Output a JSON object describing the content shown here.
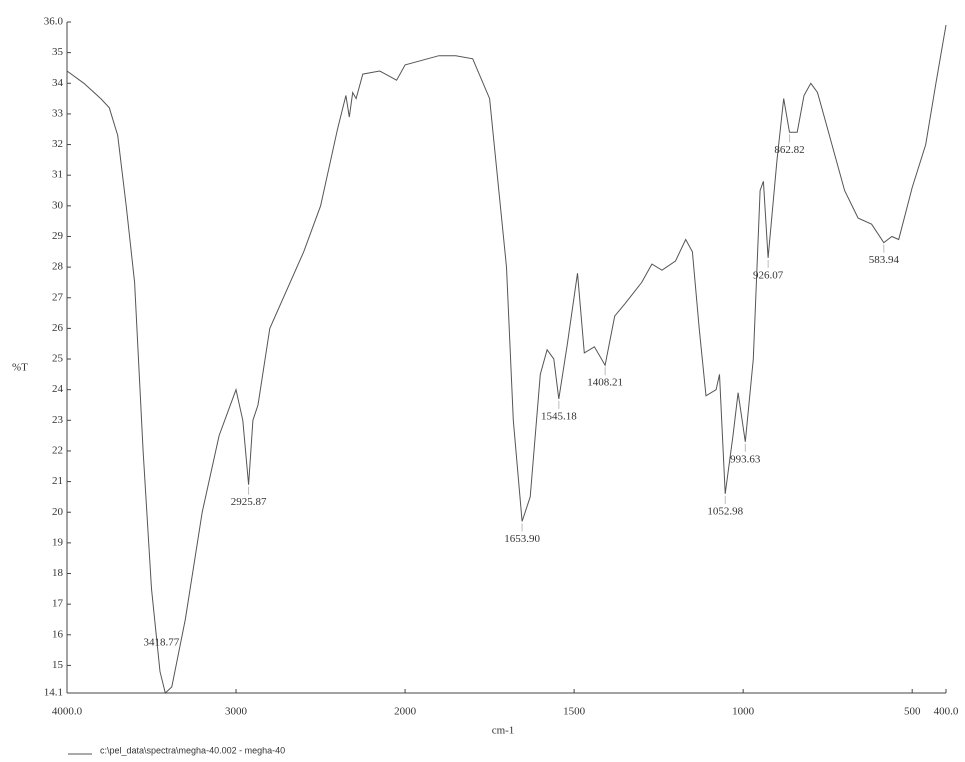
{
  "chart_data": {
    "type": "line",
    "x_label": "cm-1",
    "y_label": "%T",
    "xlim": [
      4000,
      400
    ],
    "x_scale": {
      "break": 2000,
      "factor": 2
    },
    "ylim": [
      14.1,
      36.0
    ],
    "xticks": [
      {
        "value": 4000,
        "label": "4000.0"
      },
      3000,
      2000,
      1500,
      1000,
      500,
      {
        "value": 400,
        "label": "400.0"
      }
    ],
    "yticks": [
      {
        "value": 36,
        "label": "36.0"
      },
      35,
      34,
      33,
      32,
      31,
      30,
      29,
      28,
      27,
      26,
      25,
      24,
      23,
      22,
      21,
      20,
      19,
      18,
      17,
      16,
      15,
      14.1
    ],
    "x": [
      4000,
      3900,
      3800,
      3750,
      3700,
      3650,
      3600,
      3550,
      3500,
      3450,
      3418.77,
      3380,
      3300,
      3200,
      3100,
      3000,
      2960,
      2925.87,
      2900,
      2870,
      2800,
      2600,
      2500,
      2400,
      2350,
      2330,
      2310,
      2290,
      2250,
      2150,
      2050,
      2000,
      1900,
      1850,
      1800,
      1750,
      1700,
      1680,
      1653.9,
      1630,
      1600,
      1580,
      1560,
      1545.18,
      1520,
      1490,
      1470,
      1440,
      1408.21,
      1380,
      1350,
      1300,
      1270,
      1240,
      1200,
      1170,
      1150,
      1130,
      1110,
      1080,
      1070,
      1052.98,
      1030,
      1015,
      993.63,
      970,
      950,
      940,
      926.07,
      900,
      880,
      862.82,
      840,
      820,
      800,
      780,
      750,
      700,
      660,
      620,
      583.94,
      560,
      540,
      500,
      460,
      430,
      400
    ],
    "series": [
      {
        "name": "c:\\pel_data\\spectra\\megha-40.002 - megha-40",
        "color": "#555555",
        "values": [
          34.4,
          34.0,
          33.5,
          33.2,
          32.3,
          30.0,
          27.5,
          22,
          17.5,
          14.8,
          14.1,
          14.3,
          16.5,
          20,
          22.5,
          24.0,
          23.0,
          20.9,
          23,
          23.5,
          26,
          28.5,
          30,
          32.5,
          33.6,
          32.9,
          33.7,
          33.5,
          34.3,
          34.4,
          34.1,
          34.6,
          34.9,
          34.9,
          34.8,
          33.5,
          28,
          23,
          19.7,
          20.5,
          24.5,
          25.3,
          25,
          23.7,
          25.5,
          27.8,
          25.2,
          25.4,
          24.8,
          26.4,
          26.8,
          27.5,
          28.1,
          27.9,
          28.2,
          28.9,
          28.5,
          26,
          23.8,
          24.0,
          24.5,
          20.6,
          22.5,
          23.9,
          22.3,
          25,
          30.5,
          30.8,
          28.3,
          31.5,
          33.5,
          32.4,
          32.4,
          33.6,
          34.0,
          33.7,
          32.5,
          30.5,
          29.6,
          29.4,
          28.8,
          29.0,
          28.9,
          30.6,
          32,
          34,
          35.9
        ]
      }
    ],
    "annotations": [
      {
        "label": "3418.77",
        "x": 3418.77,
        "y": 14.1,
        "position": "left"
      },
      {
        "label": "2925.87",
        "x": 2925.87,
        "y": 20.9
      },
      {
        "label": "1653.90",
        "x": 1653.9,
        "y": 19.7
      },
      {
        "label": "1545.18",
        "x": 1545.18,
        "y": 23.7
      },
      {
        "label": "1408.21",
        "x": 1408.21,
        "y": 24.8
      },
      {
        "label": "1052.98",
        "x": 1052.98,
        "y": 20.6
      },
      {
        "label": "993.63",
        "x": 993.63,
        "y": 22.3
      },
      {
        "label": "926.07",
        "x": 926.07,
        "y": 28.3
      },
      {
        "label": "862.82",
        "x": 862.82,
        "y": 32.4
      },
      {
        "label": "583.94",
        "x": 583.94,
        "y": 28.8
      }
    ]
  }
}
